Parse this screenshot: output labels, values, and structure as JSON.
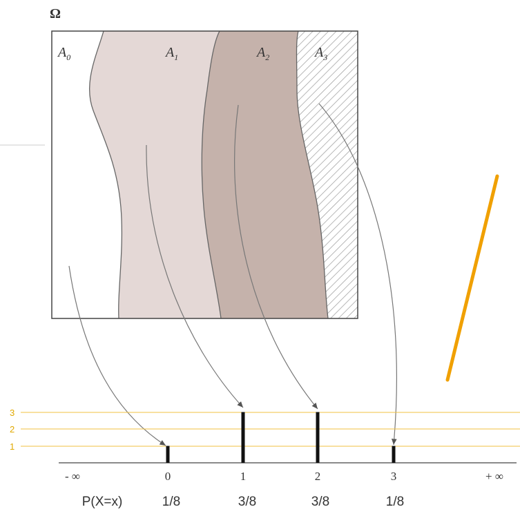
{
  "omega_label": "Ω",
  "regions": [
    {
      "base": "A",
      "sub": "0",
      "fill": "#ffffff"
    },
    {
      "base": "A",
      "sub": "1",
      "fill": "#e4d8d6"
    },
    {
      "base": "A",
      "sub": "2",
      "fill": "#c5b2ab"
    },
    {
      "base": "A",
      "sub": "3",
      "fill": "hatched"
    }
  ],
  "axis": {
    "left_label": "- ∞",
    "right_label": "+ ∞",
    "ticks": [
      "0",
      "1",
      "2",
      "3"
    ]
  },
  "prob_row": {
    "label": "P(X=x)",
    "values": [
      "1/8",
      "3/8",
      "3/8",
      "1/8"
    ]
  },
  "chart_data": {
    "type": "bar",
    "categories": [
      "0",
      "1",
      "2",
      "3"
    ],
    "values": [
      1,
      3,
      3,
      1
    ]
  },
  "guide_lines": {
    "labels": [
      "3",
      "2",
      "1"
    ],
    "color": "#f0c040"
  },
  "accent_color": "#f0a000"
}
